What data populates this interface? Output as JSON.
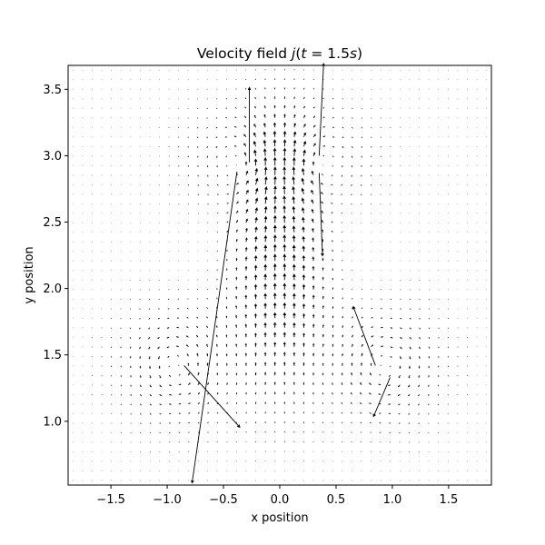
{
  "chart_data": {
    "type": "quiver",
    "title": "Velocity field j(t = 1.5s)",
    "title_parts": {
      "prefix": "Velocity field ",
      "j": "j",
      "open": "(",
      "t": "t",
      "rest": " = 1.5",
      "s": "s",
      "close": ")"
    },
    "xlabel": "x position",
    "ylabel": "y position",
    "xlim": [
      -1.88,
      1.88
    ],
    "ylim": [
      0.52,
      3.68
    ],
    "xticks": [
      -1.5,
      -1.0,
      -0.5,
      0.0,
      0.5,
      1.0,
      1.5
    ],
    "xtick_labels": [
      "−1.5",
      "−1.0",
      "−0.5",
      "0.0",
      "0.5",
      "1.0",
      "1.5"
    ],
    "yticks": [
      1.0,
      1.5,
      2.0,
      2.5,
      3.0,
      3.5
    ],
    "ytick_labels": [
      "1.0",
      "1.5",
      "2.0",
      "2.5",
      "3.0",
      "3.5"
    ],
    "grid": false,
    "legend": "none",
    "arrow_color": "#000000",
    "vortices": [
      {
        "x": -0.33,
        "y": 2.93,
        "strength": 1.0
      },
      {
        "x": 0.33,
        "y": 2.93,
        "strength": -1.0
      },
      {
        "x": -0.93,
        "y": 1.42,
        "strength": 1.0
      },
      {
        "x": 0.93,
        "y": 1.42,
        "strength": -1.0
      }
    ],
    "prominent_arrows": [
      {
        "x": -0.27,
        "y": 2.95,
        "u": 0.0,
        "v": 0.57
      },
      {
        "x": 0.35,
        "y": 3.0,
        "u": 0.04,
        "v": 0.7
      },
      {
        "x": 0.35,
        "y": 2.87,
        "u": 0.03,
        "v": -0.63
      },
      {
        "x": -0.38,
        "y": 2.88,
        "u": -0.4,
        "v": -2.35
      },
      {
        "x": -0.85,
        "y": 1.42,
        "u": 0.5,
        "v": -0.47
      },
      {
        "x": 0.85,
        "y": 1.42,
        "u": -0.2,
        "v": 0.45
      },
      {
        "x": 0.98,
        "y": 1.33,
        "u": -0.15,
        "v": -0.3
      }
    ]
  }
}
